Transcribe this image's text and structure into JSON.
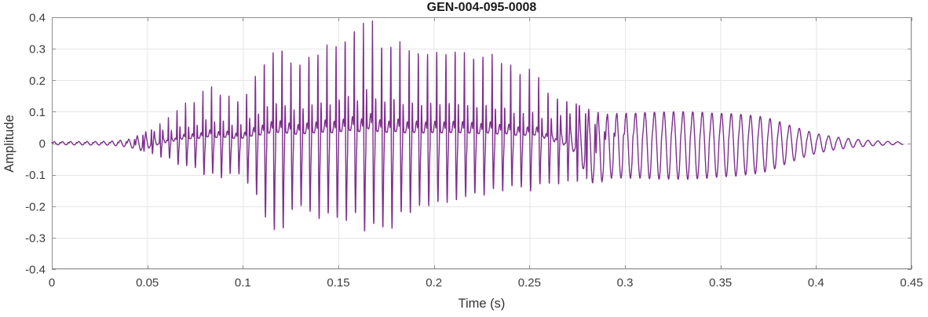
{
  "chart_data": {
    "type": "line",
    "subtype": "audio-waveform",
    "title": "GEN-004-095-0008",
    "xlabel": "Time (s)",
    "ylabel": "Amplitude",
    "xlim": [
      0,
      0.45
    ],
    "ylim": [
      -0.4,
      0.4
    ],
    "xticks": [
      0,
      0.05,
      0.1,
      0.15,
      0.2,
      0.25,
      0.3,
      0.35,
      0.4,
      0.45
    ],
    "xtick_labels": [
      "0",
      "0.05",
      "0.1",
      "0.15",
      "0.2",
      "0.25",
      "0.3",
      "0.35",
      "0.4",
      "0.45"
    ],
    "yticks": [
      -0.4,
      -0.3,
      -0.2,
      -0.1,
      0,
      0.1,
      0.2,
      0.3,
      0.4
    ],
    "ytick_labels": [
      "-0.4",
      "-0.3",
      "-0.2",
      "-0.1",
      "0",
      "0.1",
      "0.2",
      "0.3",
      "0.4"
    ],
    "grid": true,
    "box": true,
    "legend": null,
    "colors": {
      "line": "#7E2F8E",
      "grid": "#E6E6E6",
      "axis": "#8E8E8E",
      "tick_text": "#3C3C3C",
      "label_text": "#333333",
      "title_text": "#1A1A1A",
      "background": "#FFFFFF"
    },
    "waveform": {
      "description": "speech-like audio waveform: silence, voiced spiky burst peaking +0.39/-0.31 near t=0.165-0.17 s, decaying to smooth ~200 Hz sinusoid (+0.10/-0.11) from 0.29-0.37 s, fading out by 0.445 s",
      "t_start": 0,
      "t_end": 0.4455,
      "peak_max": [
        0.165,
        0.392
      ],
      "peak_min": [
        0.17,
        -0.308
      ],
      "f0_hz": [
        [
          0,
          235
        ],
        [
          0.08,
          220
        ],
        [
          0.15,
          210
        ],
        [
          0.25,
          205
        ],
        [
          0.35,
          198
        ],
        [
          0.445,
          192
        ]
      ],
      "spikiness": [
        [
          0,
          0.3
        ],
        [
          0.038,
          0.3
        ],
        [
          0.048,
          0.55
        ],
        [
          0.06,
          0.9
        ],
        [
          0.07,
          1
        ],
        [
          0.255,
          1
        ],
        [
          0.27,
          0.8
        ],
        [
          0.29,
          0.3
        ],
        [
          0.31,
          0.1
        ],
        [
          0.445,
          0.08
        ]
      ],
      "envelope": [
        [
          0.0,
          0.005,
          -0.005
        ],
        [
          0.03,
          0.006,
          -0.006
        ],
        [
          0.04,
          0.012,
          -0.012
        ],
        [
          0.045,
          0.025,
          -0.02
        ],
        [
          0.05,
          0.04,
          -0.03
        ],
        [
          0.055,
          0.055,
          -0.04
        ],
        [
          0.06,
          0.075,
          -0.05
        ],
        [
          0.065,
          0.105,
          -0.065
        ],
        [
          0.07,
          0.13,
          -0.08
        ],
        [
          0.075,
          0.15,
          -0.09
        ],
        [
          0.08,
          0.17,
          -0.1
        ],
        [
          0.085,
          0.18,
          -0.11
        ],
        [
          0.09,
          0.17,
          -0.115
        ],
        [
          0.095,
          0.155,
          -0.11
        ],
        [
          0.1,
          0.15,
          -0.105
        ],
        [
          0.105,
          0.2,
          -0.15
        ],
        [
          0.11,
          0.27,
          -0.23
        ],
        [
          0.115,
          0.305,
          -0.285
        ],
        [
          0.12,
          0.315,
          -0.3
        ],
        [
          0.125,
          0.285,
          -0.25
        ],
        [
          0.13,
          0.29,
          -0.23
        ],
        [
          0.135,
          0.32,
          -0.24
        ],
        [
          0.14,
          0.31,
          -0.25
        ],
        [
          0.145,
          0.33,
          -0.26
        ],
        [
          0.15,
          0.35,
          -0.26
        ],
        [
          0.155,
          0.355,
          -0.25
        ],
        [
          0.16,
          0.37,
          -0.26
        ],
        [
          0.165,
          0.392,
          -0.28
        ],
        [
          0.17,
          0.38,
          -0.308
        ],
        [
          0.175,
          0.33,
          -0.29
        ],
        [
          0.18,
          0.32,
          -0.26
        ],
        [
          0.185,
          0.33,
          -0.245
        ],
        [
          0.19,
          0.31,
          -0.225
        ],
        [
          0.195,
          0.315,
          -0.215
        ],
        [
          0.2,
          0.31,
          -0.205
        ],
        [
          0.205,
          0.305,
          -0.195
        ],
        [
          0.21,
          0.3,
          -0.19
        ],
        [
          0.215,
          0.3,
          -0.185
        ],
        [
          0.22,
          0.3,
          -0.18
        ],
        [
          0.225,
          0.295,
          -0.175
        ],
        [
          0.23,
          0.3,
          -0.17
        ],
        [
          0.235,
          0.29,
          -0.165
        ],
        [
          0.24,
          0.27,
          -0.16
        ],
        [
          0.245,
          0.25,
          -0.155
        ],
        [
          0.25,
          0.235,
          -0.15
        ],
        [
          0.255,
          0.205,
          -0.148
        ],
        [
          0.26,
          0.18,
          -0.145
        ],
        [
          0.265,
          0.16,
          -0.138
        ],
        [
          0.27,
          0.14,
          -0.13
        ],
        [
          0.275,
          0.125,
          -0.125
        ],
        [
          0.28,
          0.115,
          -0.12
        ],
        [
          0.285,
          0.1,
          -0.132
        ],
        [
          0.29,
          0.095,
          -0.115
        ],
        [
          0.3,
          0.095,
          -0.11
        ],
        [
          0.31,
          0.097,
          -0.112
        ],
        [
          0.32,
          0.1,
          -0.115
        ],
        [
          0.33,
          0.1,
          -0.115
        ],
        [
          0.34,
          0.098,
          -0.112
        ],
        [
          0.35,
          0.095,
          -0.108
        ],
        [
          0.36,
          0.092,
          -0.103
        ],
        [
          0.37,
          0.085,
          -0.095
        ],
        [
          0.38,
          0.072,
          -0.08
        ],
        [
          0.385,
          0.06,
          -0.065
        ],
        [
          0.39,
          0.05,
          -0.053
        ],
        [
          0.395,
          0.04,
          -0.042
        ],
        [
          0.4,
          0.031,
          -0.033
        ],
        [
          0.41,
          0.02,
          -0.021
        ],
        [
          0.42,
          0.013,
          -0.013
        ],
        [
          0.43,
          0.008,
          -0.008
        ],
        [
          0.44,
          0.005,
          -0.005
        ],
        [
          0.4455,
          0.004,
          -0.004
        ]
      ]
    }
  }
}
